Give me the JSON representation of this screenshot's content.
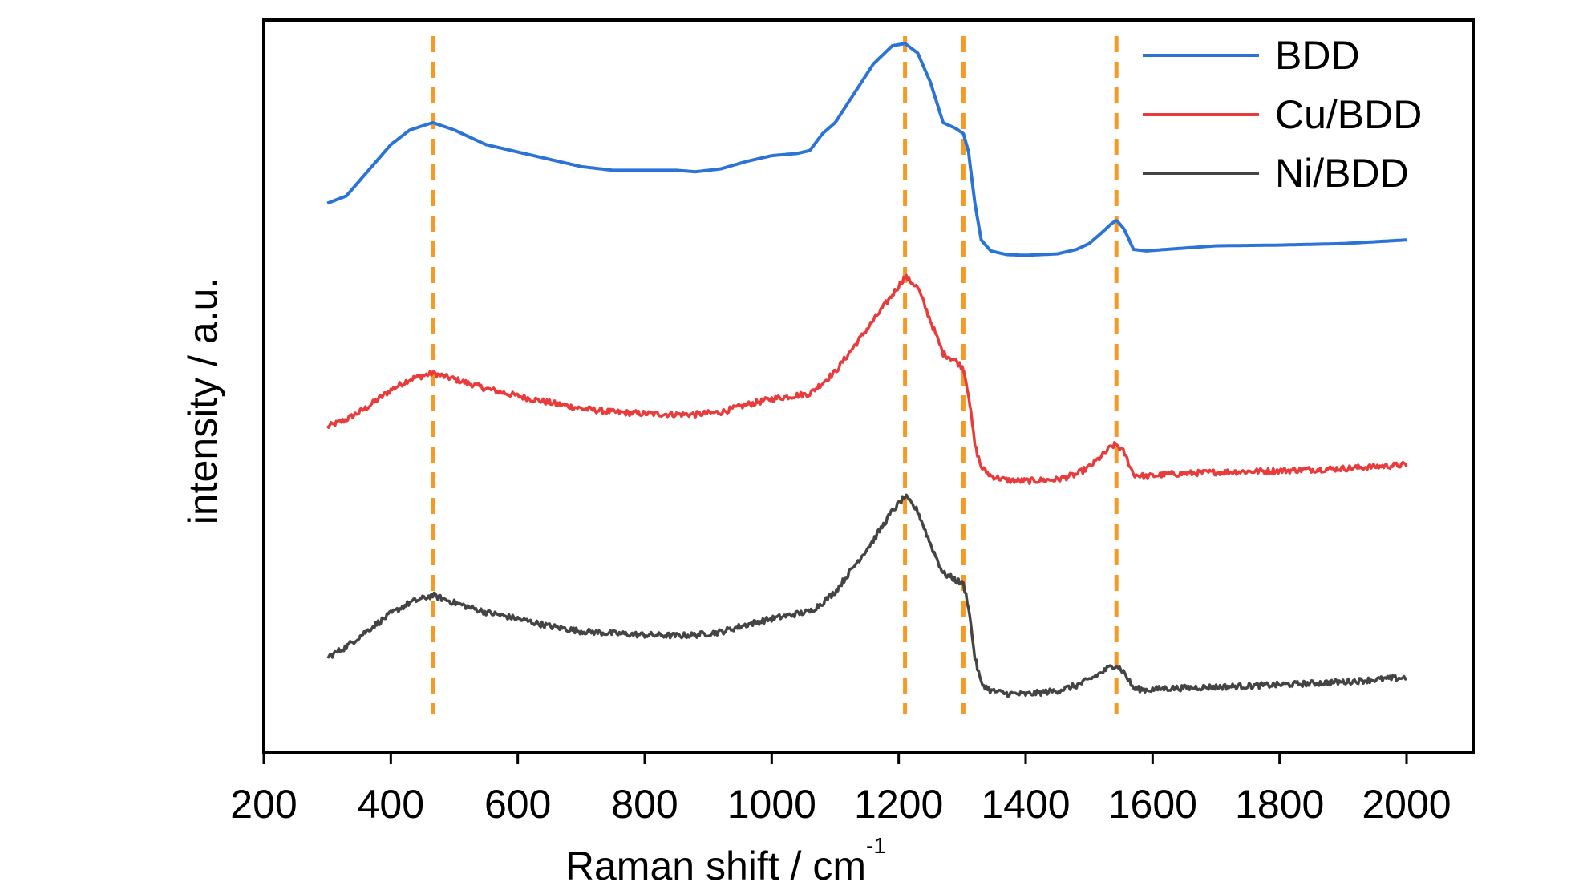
{
  "chart_data": {
    "type": "line",
    "xlabel": "Raman shift / cm",
    "xlabel_sup": "-1",
    "ylabel": "intensity / a.u.",
    "xlim": [
      200,
      2100
    ],
    "ylim": [
      0,
      1
    ],
    "xticks": [
      "200",
      "400",
      "600",
      "800",
      "1000",
      "1200",
      "1400",
      "1600",
      "1800",
      "2000"
    ],
    "yticks_shown": false,
    "grid": false,
    "legend_position": "top-right",
    "reference_lines": {
      "style": "dashed",
      "color": "#f59a25",
      "x": [
        466,
        1210,
        1302,
        1543
      ]
    },
    "series": [
      {
        "name": "BDD",
        "color": "#2b74d6",
        "noise": 0.0,
        "x": [
          300,
          330,
          360,
          400,
          430,
          466,
          500,
          550,
          600,
          650,
          700,
          750,
          800,
          850,
          880,
          920,
          960,
          1000,
          1040,
          1060,
          1080,
          1100,
          1130,
          1160,
          1190,
          1210,
          1230,
          1250,
          1270,
          1290,
          1302,
          1310,
          1320,
          1330,
          1345,
          1370,
          1400,
          1450,
          1480,
          1500,
          1520,
          1535,
          1543,
          1555,
          1570,
          1590,
          1620,
          1700,
          1800,
          1900,
          2000
        ],
        "y": [
          0.75,
          0.76,
          0.79,
          0.83,
          0.85,
          0.86,
          0.85,
          0.83,
          0.82,
          0.81,
          0.8,
          0.795,
          0.795,
          0.795,
          0.793,
          0.797,
          0.807,
          0.815,
          0.818,
          0.822,
          0.845,
          0.86,
          0.9,
          0.94,
          0.965,
          0.968,
          0.955,
          0.915,
          0.86,
          0.852,
          0.845,
          0.82,
          0.75,
          0.7,
          0.685,
          0.68,
          0.679,
          0.681,
          0.687,
          0.695,
          0.71,
          0.722,
          0.727,
          0.715,
          0.687,
          0.685,
          0.687,
          0.692,
          0.693,
          0.695,
          0.7
        ]
      },
      {
        "name": "Cu/BDD",
        "color": "#e93b3b",
        "noise": 0.004,
        "x": [
          300,
          330,
          360,
          400,
          430,
          466,
          500,
          550,
          600,
          650,
          700,
          750,
          800,
          850,
          880,
          920,
          960,
          1000,
          1040,
          1060,
          1080,
          1100,
          1130,
          1160,
          1190,
          1210,
          1230,
          1250,
          1270,
          1290,
          1302,
          1310,
          1320,
          1330,
          1345,
          1370,
          1400,
          1450,
          1480,
          1500,
          1520,
          1535,
          1543,
          1555,
          1570,
          1590,
          1620,
          1700,
          1800,
          1900,
          2000
        ],
        "y": [
          0.445,
          0.455,
          0.47,
          0.495,
          0.51,
          0.518,
          0.51,
          0.497,
          0.487,
          0.478,
          0.47,
          0.465,
          0.463,
          0.462,
          0.462,
          0.465,
          0.475,
          0.483,
          0.488,
          0.49,
          0.505,
          0.52,
          0.555,
          0.59,
          0.625,
          0.65,
          0.635,
          0.59,
          0.545,
          0.535,
          0.525,
          0.49,
          0.42,
          0.39,
          0.378,
          0.372,
          0.371,
          0.373,
          0.38,
          0.39,
          0.405,
          0.418,
          0.421,
          0.41,
          0.38,
          0.377,
          0.38,
          0.383,
          0.385,
          0.388,
          0.393
        ]
      },
      {
        "name": "Ni/BDD",
        "color": "#444444",
        "noise": 0.004,
        "x": [
          300,
          330,
          360,
          400,
          430,
          466,
          500,
          550,
          600,
          650,
          700,
          750,
          800,
          850,
          880,
          920,
          960,
          1000,
          1040,
          1060,
          1080,
          1100,
          1130,
          1160,
          1190,
          1210,
          1230,
          1250,
          1270,
          1290,
          1302,
          1310,
          1320,
          1330,
          1345,
          1370,
          1400,
          1450,
          1480,
          1500,
          1520,
          1535,
          1543,
          1555,
          1570,
          1590,
          1620,
          1700,
          1800,
          1900,
          2000
        ],
        "y": [
          0.13,
          0.145,
          0.165,
          0.19,
          0.205,
          0.215,
          0.205,
          0.192,
          0.183,
          0.173,
          0.166,
          0.163,
          0.161,
          0.16,
          0.161,
          0.165,
          0.175,
          0.183,
          0.19,
          0.193,
          0.205,
          0.22,
          0.255,
          0.29,
          0.33,
          0.35,
          0.33,
          0.285,
          0.245,
          0.236,
          0.23,
          0.2,
          0.13,
          0.095,
          0.085,
          0.081,
          0.08,
          0.085,
          0.092,
          0.1,
          0.11,
          0.118,
          0.12,
          0.11,
          0.088,
          0.086,
          0.088,
          0.09,
          0.093,
          0.097,
          0.103
        ]
      }
    ]
  }
}
